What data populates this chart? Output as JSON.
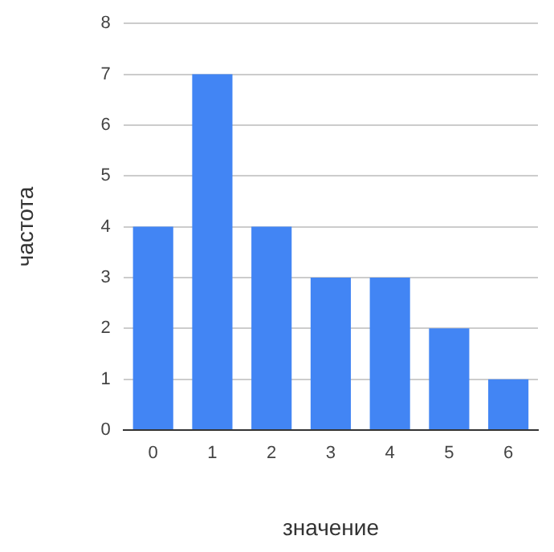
{
  "chart_data": {
    "type": "bar",
    "xlabel": "значение",
    "ylabel": "частота",
    "categories": [
      "0",
      "1",
      "2",
      "3",
      "4",
      "5",
      "6"
    ],
    "values": [
      4,
      7,
      4,
      3,
      3,
      2,
      1
    ],
    "color": "#4285f4",
    "ylim": [
      0,
      8
    ],
    "yticks": [
      0,
      1,
      2,
      3,
      4,
      5,
      6,
      7,
      8
    ],
    "grid": "y"
  }
}
